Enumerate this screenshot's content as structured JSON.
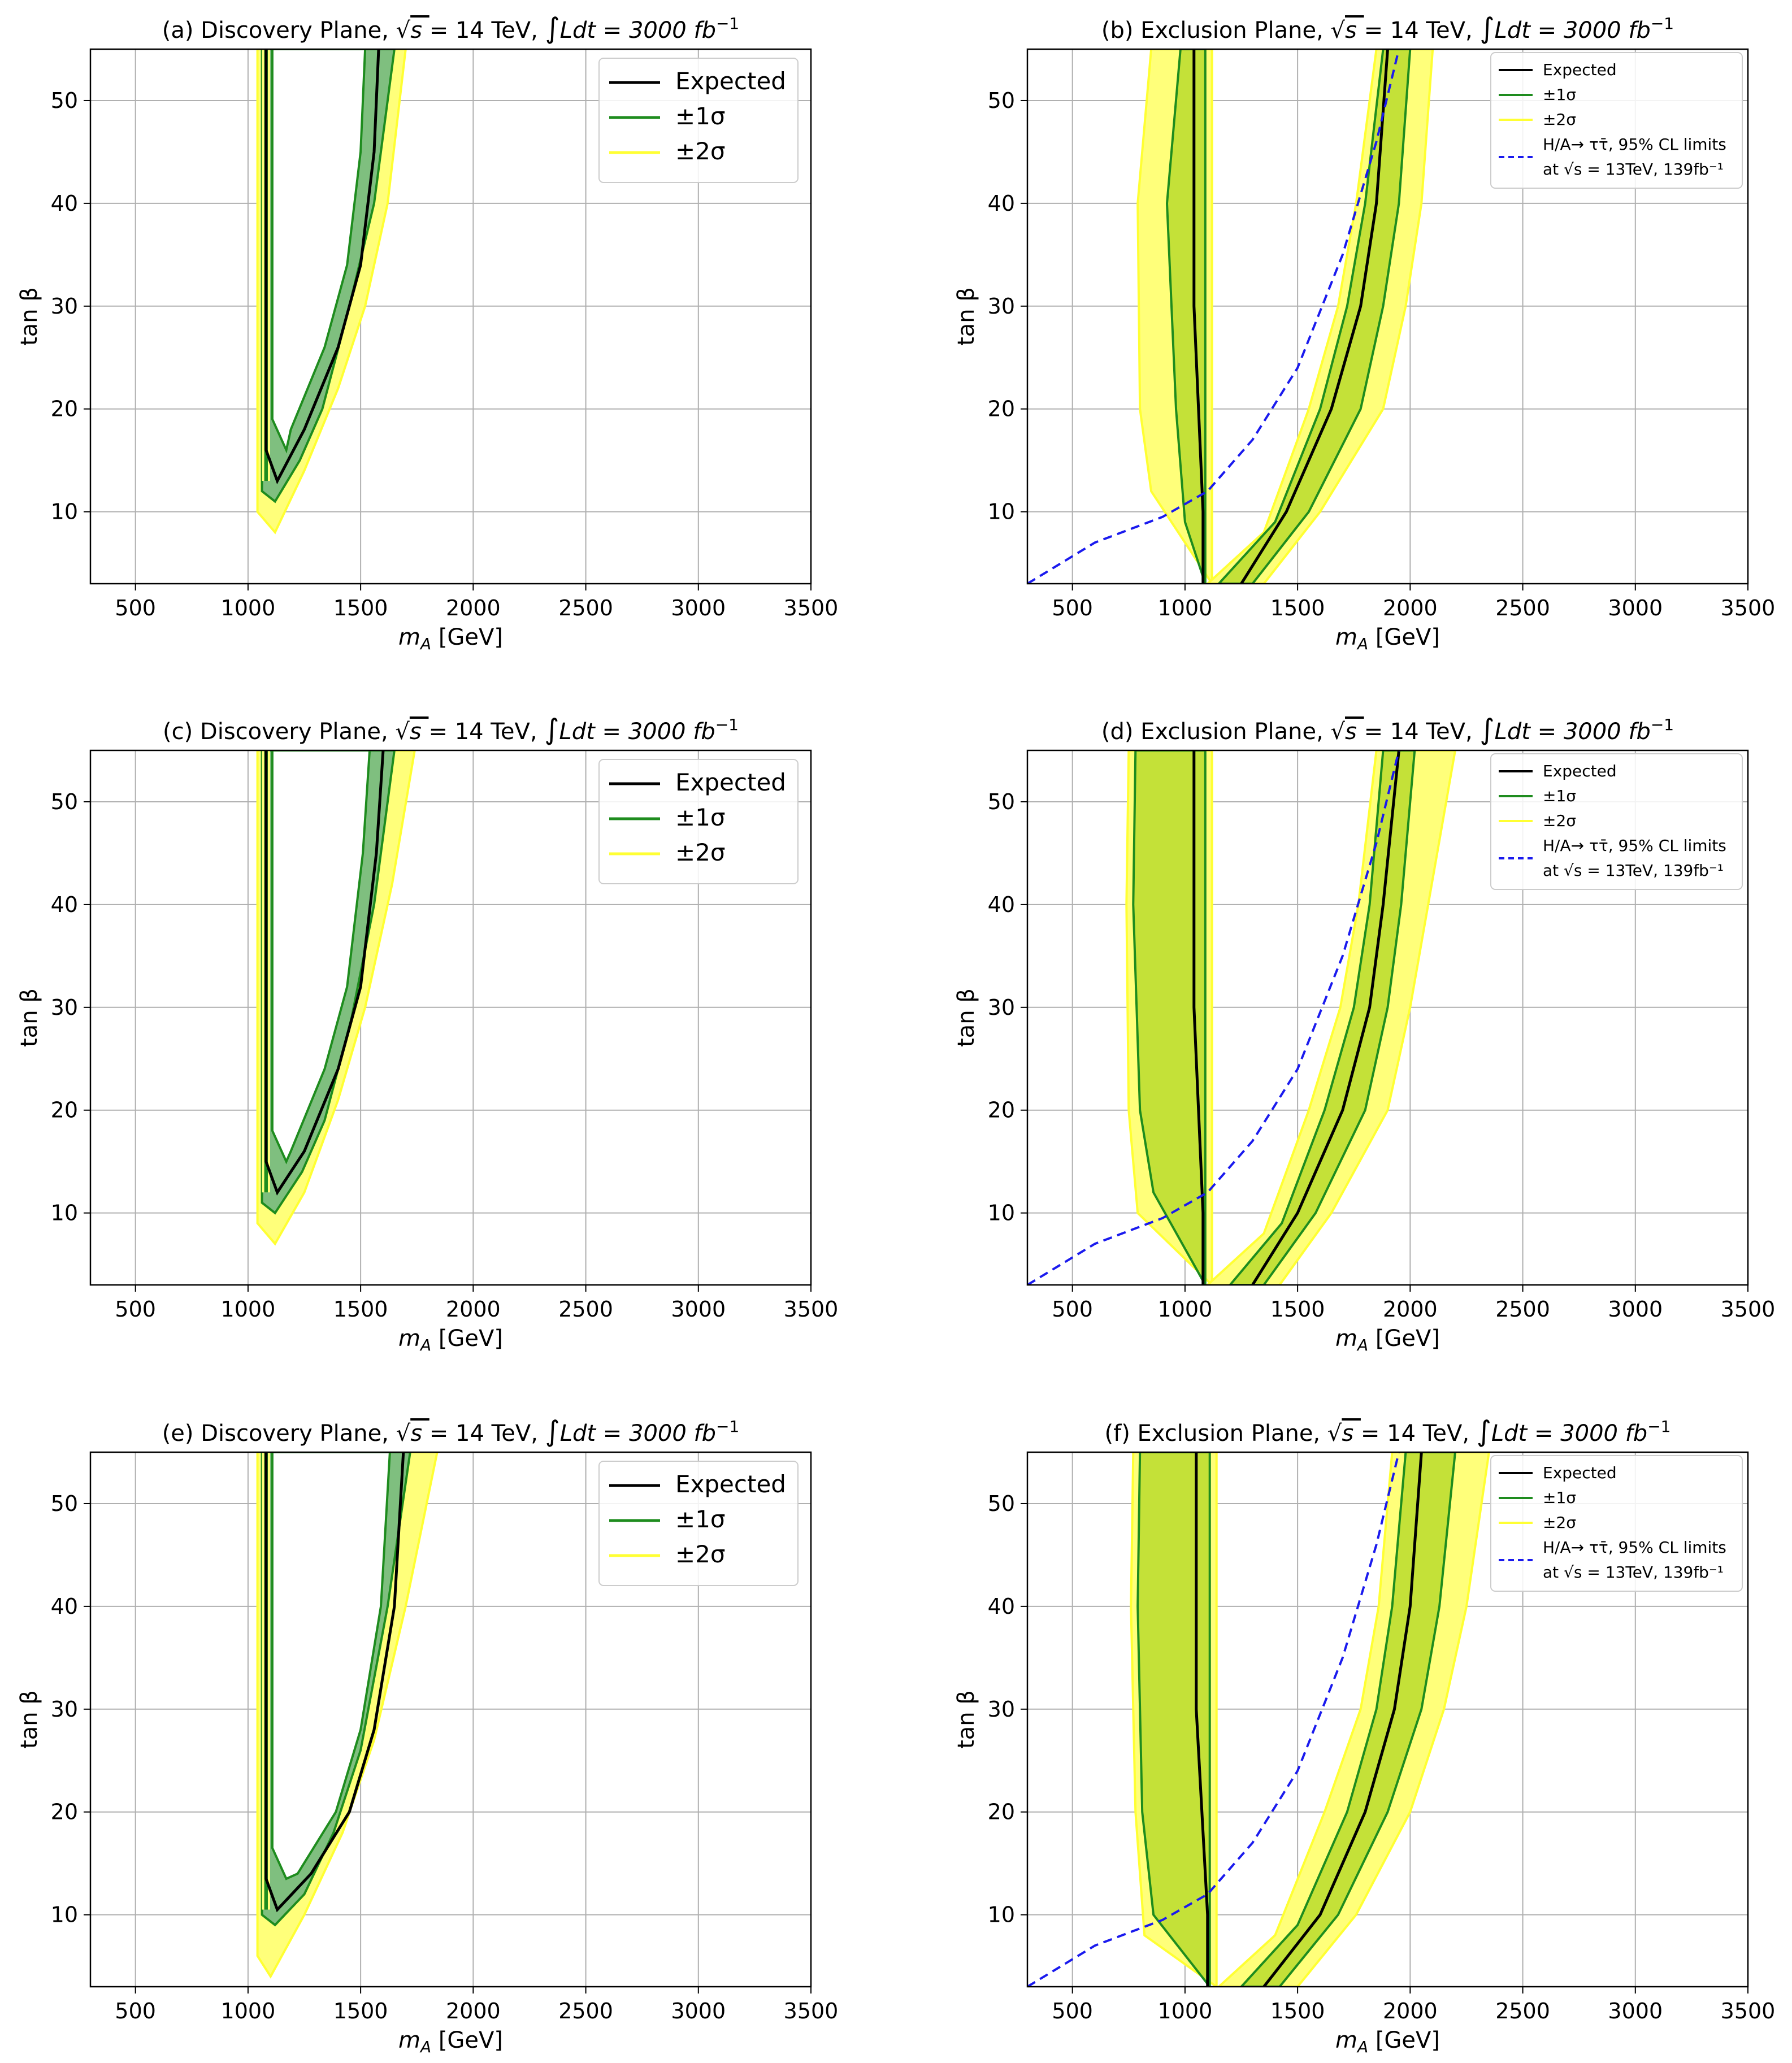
{
  "figure": {
    "background": "#ffffff"
  },
  "colors": {
    "expected": "#000000",
    "one_sigma_line": "#1e8c1e",
    "two_sigma_line": "#ffff33",
    "disc_one_sigma_fill": "#7fbf7f",
    "excl_one_sigma_fill": "#c4e138",
    "two_sigma_fill": "#ffff7a",
    "limit_line": "#1a1aee",
    "grid": "#b0b0b0"
  },
  "chart_data": [
    {
      "panel": "a",
      "type": "contour",
      "kind": "discovery",
      "title_prefix": "(a) Discovery Plane, ",
      "title_energy": "= 14 TeV, ",
      "title_lumi": "Ldt = 3000 ",
      "title_unit": "fb",
      "title_exp": "−1",
      "xlabel_var": "m",
      "xlabel_sub": "A",
      "xlabel_unit": " [GeV]",
      "ylabel": "tan β",
      "xlim": [
        300,
        3500
      ],
      "ylim": [
        3,
        55
      ],
      "xticks": [
        500,
        1000,
        1500,
        2000,
        2500,
        3000,
        3500
      ],
      "yticks": [
        10,
        20,
        30,
        40,
        50
      ],
      "legend_position": "upper-right",
      "legend": {
        "expected": "Expected",
        "one_sigma": "±1σ",
        "two_sigma": "±2σ"
      },
      "left_branch": {
        "expected": 1080,
        "inner1": 1072,
        "outer1": 1088,
        "inner2": 1062,
        "outer2": 1098
      },
      "right_branch": {
        "expected": [
          [
            1130,
            13
          ],
          [
            1250,
            18
          ],
          [
            1400,
            26
          ],
          [
            1500,
            34
          ],
          [
            1560,
            45
          ],
          [
            1580,
            55
          ]
        ],
        "one_sigma": [
          [
            1120,
            11
          ],
          [
            1230,
            15
          ],
          [
            1330,
            20
          ],
          [
            1450,
            30
          ],
          [
            1560,
            40
          ],
          [
            1650,
            55
          ]
        ],
        "two_sigma": [
          [
            1120,
            8
          ],
          [
            1250,
            14
          ],
          [
            1400,
            22
          ],
          [
            1520,
            30
          ],
          [
            1620,
            40
          ],
          [
            1700,
            55
          ]
        ]
      }
    },
    {
      "panel": "b",
      "type": "contour",
      "kind": "exclusion",
      "title_prefix": "(b) Exclusion Plane, ",
      "title_energy": "= 14 TeV, ",
      "title_lumi": "Ldt = 3000 ",
      "title_unit": "fb",
      "title_exp": "−1",
      "xlabel_var": "m",
      "xlabel_sub": "A",
      "xlabel_unit": " [GeV]",
      "ylabel": "tan β",
      "xlim": [
        300,
        3500
      ],
      "ylim": [
        3,
        55
      ],
      "xticks": [
        500,
        1000,
        1500,
        2000,
        2500,
        3000,
        3500
      ],
      "yticks": [
        10,
        20,
        30,
        40,
        50
      ],
      "legend_position": "upper-right",
      "legend": {
        "expected": "Expected",
        "one_sigma": "±1σ",
        "two_sigma": "±2σ",
        "limit_line1": "H/A→ ττ̄, 95% CL limits",
        "limit_line2": "at √s = 13TeV, 139fb⁻¹"
      },
      "left_band": {
        "one_sigma": [
          [
            980,
            55
          ],
          [
            920,
            40
          ],
          [
            960,
            20
          ],
          [
            1000,
            9
          ]
        ],
        "two_sigma": [
          [
            850,
            55
          ],
          [
            790,
            40
          ],
          [
            800,
            20
          ],
          [
            850,
            12
          ]
        ]
      },
      "left_expected_x": [
        1040,
        1080
      ],
      "right_branch": {
        "expected": [
          [
            1250,
            3
          ],
          [
            1450,
            10
          ],
          [
            1650,
            20
          ],
          [
            1780,
            30
          ],
          [
            1850,
            40
          ],
          [
            1900,
            55
          ]
        ],
        "one_sigma": [
          [
            1150,
            3
          ],
          [
            1400,
            9
          ],
          [
            1600,
            20
          ],
          [
            1720,
            30
          ],
          [
            1800,
            40
          ],
          [
            1880,
            55
          ]
        ],
        "two_sigma": [
          [
            1100,
            3
          ],
          [
            1350,
            8
          ],
          [
            1550,
            20
          ],
          [
            1680,
            30
          ],
          [
            1760,
            40
          ],
          [
            1850,
            55
          ]
        ],
        "one_sigma_outer": [
          [
            1300,
            3
          ],
          [
            1550,
            10
          ],
          [
            1780,
            20
          ],
          [
            1880,
            30
          ],
          [
            1950,
            40
          ],
          [
            2000,
            55
          ]
        ],
        "two_sigma_outer": [
          [
            1350,
            3
          ],
          [
            1600,
            10
          ],
          [
            1880,
            20
          ],
          [
            1980,
            30
          ],
          [
            2050,
            40
          ],
          [
            2100,
            55
          ]
        ]
      },
      "limit_curve": [
        [
          300,
          3
        ],
        [
          600,
          7
        ],
        [
          900,
          9.5
        ],
        [
          1100,
          12
        ],
        [
          1300,
          17
        ],
        [
          1500,
          24
        ],
        [
          1700,
          35
        ],
        [
          1850,
          46
        ],
        [
          1950,
          55
        ]
      ]
    },
    {
      "panel": "c",
      "type": "contour",
      "kind": "discovery",
      "title_prefix": "(c) Discovery Plane, ",
      "title_energy": "= 14 TeV, ",
      "title_lumi": "Ldt = 3000 ",
      "title_unit": "fb",
      "title_exp": "−1",
      "xlabel_var": "m",
      "xlabel_sub": "A",
      "xlabel_unit": " [GeV]",
      "ylabel": "tan β",
      "xlim": [
        300,
        3500
      ],
      "ylim": [
        3,
        55
      ],
      "xticks": [
        500,
        1000,
        1500,
        2000,
        2500,
        3000,
        3500
      ],
      "yticks": [
        10,
        20,
        30,
        40,
        50
      ],
      "legend_position": "upper-right",
      "legend": {
        "expected": "Expected",
        "one_sigma": "±1σ",
        "two_sigma": "±2σ"
      },
      "left_branch": {
        "expected": 1080,
        "inner1": 1072,
        "outer1": 1088,
        "inner2": 1062,
        "outer2": 1098
      },
      "right_branch": {
        "expected": [
          [
            1130,
            12
          ],
          [
            1250,
            16
          ],
          [
            1400,
            24
          ],
          [
            1500,
            32
          ],
          [
            1570,
            45
          ],
          [
            1600,
            55
          ]
        ],
        "one_sigma": [
          [
            1120,
            10
          ],
          [
            1240,
            14
          ],
          [
            1340,
            19
          ],
          [
            1460,
            29
          ],
          [
            1560,
            40
          ],
          [
            1650,
            55
          ]
        ],
        "two_sigma": [
          [
            1120,
            7
          ],
          [
            1250,
            12
          ],
          [
            1400,
            21
          ],
          [
            1520,
            30
          ],
          [
            1640,
            42
          ],
          [
            1740,
            55
          ]
        ]
      }
    },
    {
      "panel": "d",
      "type": "contour",
      "kind": "exclusion",
      "title_prefix": "(d) Exclusion Plane, ",
      "title_energy": "= 14 TeV, ",
      "title_lumi": "Ldt = 3000 ",
      "title_unit": "fb",
      "title_exp": "−1",
      "xlabel_var": "m",
      "xlabel_sub": "A",
      "xlabel_unit": " [GeV]",
      "ylabel": "tan β",
      "xlim": [
        300,
        3500
      ],
      "ylim": [
        3,
        55
      ],
      "xticks": [
        500,
        1000,
        1500,
        2000,
        2500,
        3000,
        3500
      ],
      "yticks": [
        10,
        20,
        30,
        40,
        50
      ],
      "legend_position": "upper-right",
      "legend": {
        "expected": "Expected",
        "one_sigma": "±1σ",
        "two_sigma": "±2σ",
        "limit_line1": "H/A→ ττ̄, 95% CL limits",
        "limit_line2": "at √s = 13TeV, 139fb⁻¹"
      },
      "left_band": {
        "one_sigma": [
          [
            780,
            55
          ],
          [
            770,
            40
          ],
          [
            800,
            20
          ],
          [
            860,
            12
          ]
        ],
        "two_sigma": [
          [
            750,
            55
          ],
          [
            740,
            40
          ],
          [
            750,
            20
          ],
          [
            790,
            10
          ]
        ]
      },
      "left_expected_x": [
        1040,
        1080
      ],
      "right_branch": {
        "expected": [
          [
            1300,
            3
          ],
          [
            1500,
            10
          ],
          [
            1700,
            20
          ],
          [
            1820,
            30
          ],
          [
            1880,
            40
          ],
          [
            1950,
            55
          ]
        ],
        "one_sigma": [
          [
            1200,
            3
          ],
          [
            1430,
            9
          ],
          [
            1620,
            20
          ],
          [
            1750,
            30
          ],
          [
            1820,
            40
          ],
          [
            1880,
            55
          ]
        ],
        "two_sigma": [
          [
            1100,
            3
          ],
          [
            1350,
            8
          ],
          [
            1550,
            20
          ],
          [
            1690,
            30
          ],
          [
            1770,
            40
          ],
          [
            1850,
            55
          ]
        ],
        "one_sigma_outer": [
          [
            1350,
            3
          ],
          [
            1580,
            10
          ],
          [
            1800,
            20
          ],
          [
            1900,
            30
          ],
          [
            1960,
            40
          ],
          [
            2020,
            55
          ]
        ],
        "two_sigma_outer": [
          [
            1420,
            3
          ],
          [
            1650,
            10
          ],
          [
            1900,
            20
          ],
          [
            2000,
            30
          ],
          [
            2080,
            40
          ],
          [
            2200,
            55
          ]
        ]
      },
      "limit_curve": [
        [
          300,
          3
        ],
        [
          600,
          7
        ],
        [
          900,
          9.5
        ],
        [
          1100,
          12
        ],
        [
          1300,
          17
        ],
        [
          1500,
          24
        ],
        [
          1700,
          35
        ],
        [
          1850,
          46
        ],
        [
          1950,
          55
        ]
      ]
    },
    {
      "panel": "e",
      "type": "contour",
      "kind": "discovery",
      "title_prefix": "(e) Discovery Plane, ",
      "title_energy": "= 14 TeV, ",
      "title_lumi": "Ldt = 3000 ",
      "title_unit": "fb",
      "title_exp": "−1",
      "xlabel_var": "m",
      "xlabel_sub": "A",
      "xlabel_unit": " [GeV]",
      "ylabel": "tan β",
      "xlim": [
        300,
        3500
      ],
      "ylim": [
        3,
        55
      ],
      "xticks": [
        500,
        1000,
        1500,
        2000,
        2500,
        3000,
        3500
      ],
      "yticks": [
        10,
        20,
        30,
        40,
        50
      ],
      "legend_position": "upper-right",
      "legend": {
        "expected": "Expected",
        "one_sigma": "±1σ",
        "two_sigma": "±2σ"
      },
      "left_branch": {
        "expected": 1080,
        "inner1": 1072,
        "outer1": 1088,
        "inner2": 1062,
        "outer2": 1098
      },
      "right_branch": {
        "expected": [
          [
            1130,
            10.5
          ],
          [
            1280,
            14
          ],
          [
            1450,
            20
          ],
          [
            1560,
            28
          ],
          [
            1650,
            40
          ],
          [
            1690,
            55
          ]
        ],
        "one_sigma": [
          [
            1120,
            9
          ],
          [
            1250,
            12
          ],
          [
            1380,
            18
          ],
          [
            1500,
            26
          ],
          [
            1620,
            40
          ],
          [
            1720,
            55
          ]
        ],
        "two_sigma": [
          [
            1100,
            4
          ],
          [
            1250,
            10
          ],
          [
            1420,
            18
          ],
          [
            1560,
            27
          ],
          [
            1700,
            40
          ],
          [
            1840,
            55
          ]
        ]
      }
    },
    {
      "panel": "f",
      "type": "contour",
      "kind": "exclusion",
      "title_prefix": "(f) Exclusion Plane, ",
      "title_energy": "= 14 TeV, ",
      "title_lumi": "Ldt = 3000 ",
      "title_unit": "fb",
      "title_exp": "−1",
      "xlabel_var": "m",
      "xlabel_sub": "A",
      "xlabel_unit": " [GeV]",
      "ylabel": "tan β",
      "xlim": [
        300,
        3500
      ],
      "ylim": [
        3,
        55
      ],
      "xticks": [
        500,
        1000,
        1500,
        2000,
        2500,
        3000,
        3500
      ],
      "yticks": [
        10,
        20,
        30,
        40,
        50
      ],
      "legend_position": "upper-right",
      "legend": {
        "expected": "Expected",
        "one_sigma": "±1σ",
        "two_sigma": "±2σ",
        "limit_line1": "H/A→ ττ̄, 95% CL limits",
        "limit_line2": "at √s = 13TeV, 139fb⁻¹"
      },
      "left_band": {
        "one_sigma": [
          [
            800,
            55
          ],
          [
            790,
            40
          ],
          [
            810,
            20
          ],
          [
            860,
            10
          ]
        ],
        "two_sigma": [
          [
            770,
            55
          ],
          [
            760,
            40
          ],
          [
            780,
            20
          ],
          [
            820,
            8
          ]
        ]
      },
      "left_expected_x": [
        1050,
        1100
      ],
      "right_branch": {
        "expected": [
          [
            1350,
            3
          ],
          [
            1600,
            10
          ],
          [
            1800,
            20
          ],
          [
            1930,
            30
          ],
          [
            2000,
            40
          ],
          [
            2050,
            55
          ]
        ],
        "one_sigma": [
          [
            1250,
            3
          ],
          [
            1500,
            9
          ],
          [
            1720,
            20
          ],
          [
            1850,
            30
          ],
          [
            1920,
            40
          ],
          [
            1980,
            55
          ]
        ],
        "two_sigma": [
          [
            1150,
            3
          ],
          [
            1400,
            8
          ],
          [
            1620,
            20
          ],
          [
            1780,
            30
          ],
          [
            1860,
            40
          ],
          [
            1920,
            55
          ]
        ],
        "one_sigma_outer": [
          [
            1420,
            3
          ],
          [
            1680,
            10
          ],
          [
            1900,
            20
          ],
          [
            2050,
            30
          ],
          [
            2130,
            40
          ],
          [
            2200,
            55
          ]
        ],
        "two_sigma_outer": [
          [
            1500,
            3
          ],
          [
            1760,
            10
          ],
          [
            2000,
            20
          ],
          [
            2150,
            30
          ],
          [
            2250,
            40
          ],
          [
            2350,
            55
          ]
        ]
      },
      "limit_curve": [
        [
          300,
          3
        ],
        [
          600,
          7
        ],
        [
          900,
          9.5
        ],
        [
          1100,
          12
        ],
        [
          1300,
          17
        ],
        [
          1500,
          24
        ],
        [
          1700,
          35
        ],
        [
          1850,
          46
        ],
        [
          1950,
          55
        ]
      ]
    }
  ]
}
